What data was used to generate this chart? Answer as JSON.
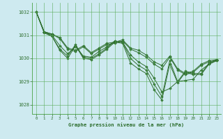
{
  "title": "Graphe pression niveau de la mer (hPa)",
  "background_color": "#ceeaf0",
  "grid_color": "#5aac5a",
  "line_color": "#2d6e2d",
  "marker_color": "#2d6e2d",
  "xlim": [
    -0.5,
    23.5
  ],
  "ylim": [
    1027.6,
    1032.4
  ],
  "yticks": [
    1028,
    1029,
    1030,
    1031,
    1032
  ],
  "xticks": [
    0,
    1,
    2,
    3,
    4,
    5,
    6,
    7,
    8,
    9,
    10,
    11,
    12,
    13,
    14,
    15,
    16,
    17,
    18,
    19,
    20,
    21,
    22,
    23
  ],
  "series": [
    [
      1032.0,
      1031.15,
      1031.05,
      1030.9,
      1030.45,
      1030.35,
      1030.55,
      1030.25,
      1030.45,
      1030.65,
      1030.7,
      1030.8,
      1030.45,
      1030.35,
      1030.15,
      1029.85,
      1029.7,
      1030.1,
      1029.55,
      1029.35,
      1029.45,
      1029.75,
      1029.9,
      1029.95
    ],
    [
      1032.0,
      1031.15,
      1031.05,
      1030.85,
      1030.4,
      1030.3,
      1030.5,
      1030.2,
      1030.4,
      1030.6,
      1030.65,
      1030.75,
      1030.4,
      1030.25,
      1030.05,
      1029.75,
      1029.55,
      1030.05,
      1029.5,
      1029.3,
      1029.4,
      1029.7,
      1029.85,
      1029.9
    ],
    [
      1032.0,
      1031.15,
      1031.0,
      1030.55,
      1030.2,
      1030.5,
      1030.1,
      1030.05,
      1030.3,
      1030.5,
      1030.75,
      1030.7,
      1030.15,
      1029.85,
      1029.65,
      1029.15,
      1028.55,
      1028.7,
      1029.0,
      1029.05,
      1029.1,
      1029.5,
      1029.75,
      1029.95
    ],
    [
      1032.0,
      1031.15,
      1030.95,
      1030.4,
      1030.1,
      1030.6,
      1030.05,
      1030.0,
      1030.2,
      1030.45,
      1030.75,
      1030.7,
      1030.0,
      1029.7,
      1029.5,
      1028.9,
      1028.35,
      1029.9,
      1029.0,
      1029.45,
      1029.35,
      1029.35,
      1029.8,
      1029.95
    ],
    [
      1032.0,
      1031.1,
      1030.95,
      1030.35,
      1030.0,
      1030.55,
      1030.0,
      1029.95,
      1030.15,
      1030.4,
      1030.7,
      1030.65,
      1029.8,
      1029.55,
      1029.35,
      1028.65,
      1028.2,
      1029.75,
      1028.95,
      1029.4,
      1029.3,
      1029.3,
      1029.75,
      1029.9
    ]
  ]
}
